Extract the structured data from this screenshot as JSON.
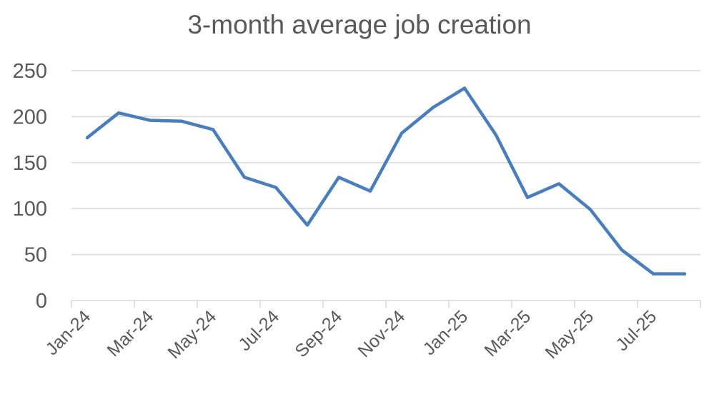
{
  "chart_data": {
    "type": "line",
    "title": "3-month average job creation",
    "xlabel": "",
    "ylabel": "",
    "ylim": [
      0,
      250
    ],
    "yticks": [
      0,
      50,
      100,
      150,
      200,
      250
    ],
    "grid": true,
    "legend": "none",
    "x": [
      "Jan-24",
      "Feb-24",
      "Mar-24",
      "Apr-24",
      "May-24",
      "Jun-24",
      "Jul-24",
      "Aug-24",
      "Sep-24",
      "Oct-24",
      "Nov-24",
      "Dec-24",
      "Jan-25",
      "Feb-25",
      "Mar-25",
      "Apr-25",
      "May-25",
      "Jun-25",
      "Jul-25",
      "Aug-25"
    ],
    "xtick_labels": [
      "Jan-24",
      "Mar-24",
      "May-24",
      "Jul-24",
      "Sep-24",
      "Nov-24",
      "Jan-25",
      "Mar-25",
      "May-25",
      "Jul-25"
    ],
    "series": [
      {
        "name": "3-month average job creation",
        "color": "#4a7ebb",
        "values": [
          177,
          204,
          196,
          195,
          186,
          134,
          123,
          82,
          134,
          119,
          182,
          210,
          231,
          180,
          112,
          127,
          99,
          55,
          29,
          29
        ]
      }
    ]
  },
  "colors": {
    "line": "#4a7ebb",
    "grid": "#d9d9d9",
    "text": "#595959"
  }
}
